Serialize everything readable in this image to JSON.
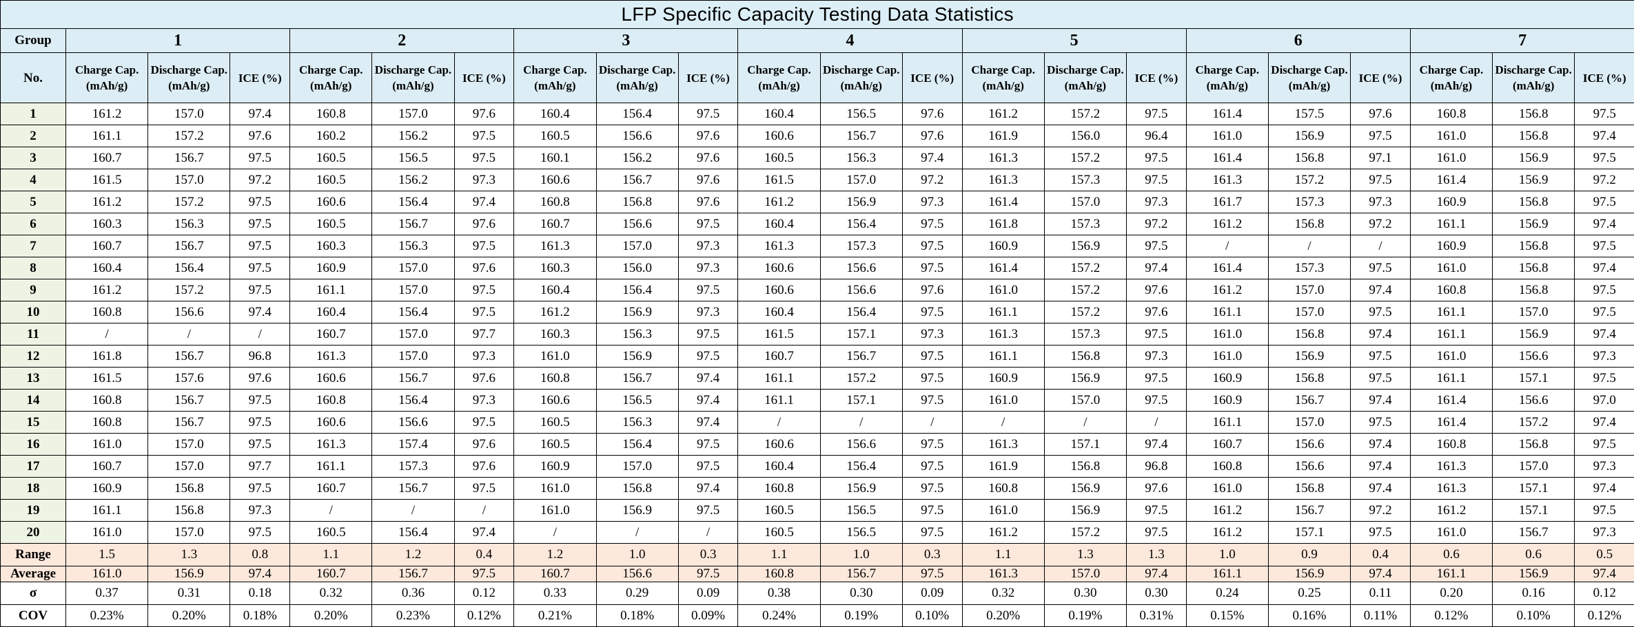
{
  "title": "LFP Specific Capacity Testing Data Statistics",
  "header": {
    "group_label": "Group",
    "no_label": "No.",
    "col_charge": "Charge Cap. (mAh/g)",
    "col_discharge": "Discharge Cap. (mAh/g)",
    "col_ice": "ICE (%)"
  },
  "groups": [
    "1",
    "2",
    "3",
    "4",
    "5",
    "6",
    "7"
  ],
  "rows": [
    {
      "no": "1",
      "v": [
        "161.2",
        "157.0",
        "97.4",
        "160.8",
        "157.0",
        "97.6",
        "160.4",
        "156.4",
        "97.5",
        "160.4",
        "156.5",
        "97.6",
        "161.2",
        "157.2",
        "97.5",
        "161.4",
        "157.5",
        "97.6",
        "160.8",
        "156.8",
        "97.5"
      ]
    },
    {
      "no": "2",
      "v": [
        "161.1",
        "157.2",
        "97.6",
        "160.2",
        "156.2",
        "97.5",
        "160.5",
        "156.6",
        "97.6",
        "160.6",
        "156.7",
        "97.6",
        "161.9",
        "156.0",
        "96.4",
        "161.0",
        "156.9",
        "97.5",
        "161.0",
        "156.8",
        "97.4"
      ]
    },
    {
      "no": "3",
      "v": [
        "160.7",
        "156.7",
        "97.5",
        "160.5",
        "156.5",
        "97.5",
        "160.1",
        "156.2",
        "97.6",
        "160.5",
        "156.3",
        "97.4",
        "161.3",
        "157.2",
        "97.5",
        "161.4",
        "156.8",
        "97.1",
        "161.0",
        "156.9",
        "97.5"
      ]
    },
    {
      "no": "4",
      "v": [
        "161.5",
        "157.0",
        "97.2",
        "160.5",
        "156.2",
        "97.3",
        "160.6",
        "156.7",
        "97.6",
        "161.5",
        "157.0",
        "97.2",
        "161.3",
        "157.3",
        "97.5",
        "161.3",
        "157.2",
        "97.5",
        "161.4",
        "156.9",
        "97.2"
      ]
    },
    {
      "no": "5",
      "v": [
        "161.2",
        "157.2",
        "97.5",
        "160.6",
        "156.4",
        "97.4",
        "160.8",
        "156.8",
        "97.6",
        "161.2",
        "156.9",
        "97.3",
        "161.4",
        "157.0",
        "97.3",
        "161.7",
        "157.3",
        "97.3",
        "160.9",
        "156.8",
        "97.5"
      ]
    },
    {
      "no": "6",
      "v": [
        "160.3",
        "156.3",
        "97.5",
        "160.5",
        "156.7",
        "97.6",
        "160.7",
        "156.6",
        "97.5",
        "160.4",
        "156.4",
        "97.5",
        "161.8",
        "157.3",
        "97.2",
        "161.2",
        "156.8",
        "97.2",
        "161.1",
        "156.9",
        "97.4"
      ]
    },
    {
      "no": "7",
      "v": [
        "160.7",
        "156.7",
        "97.5",
        "160.3",
        "156.3",
        "97.5",
        "161.3",
        "157.0",
        "97.3",
        "161.3",
        "157.3",
        "97.5",
        "160.9",
        "156.9",
        "97.5",
        "/",
        "/",
        "/",
        "160.9",
        "156.8",
        "97.5"
      ]
    },
    {
      "no": "8",
      "v": [
        "160.4",
        "156.4",
        "97.5",
        "160.9",
        "157.0",
        "97.6",
        "160.3",
        "156.0",
        "97.3",
        "160.6",
        "156.6",
        "97.5",
        "161.4",
        "157.2",
        "97.4",
        "161.4",
        "157.3",
        "97.5",
        "161.0",
        "156.8",
        "97.4"
      ]
    },
    {
      "no": "9",
      "v": [
        "161.2",
        "157.2",
        "97.5",
        "161.1",
        "157.0",
        "97.5",
        "160.4",
        "156.4",
        "97.5",
        "160.6",
        "156.6",
        "97.6",
        "161.0",
        "157.2",
        "97.6",
        "161.2",
        "157.0",
        "97.4",
        "160.8",
        "156.8",
        "97.5"
      ]
    },
    {
      "no": "10",
      "v": [
        "160.8",
        "156.6",
        "97.4",
        "160.4",
        "156.4",
        "97.5",
        "161.2",
        "156.9",
        "97.3",
        "160.4",
        "156.4",
        "97.5",
        "161.1",
        "157.2",
        "97.6",
        "161.1",
        "157.0",
        "97.5",
        "161.1",
        "157.0",
        "97.5"
      ]
    },
    {
      "no": "11",
      "v": [
        "/",
        "/",
        "/",
        "160.7",
        "157.0",
        "97.7",
        "160.3",
        "156.3",
        "97.5",
        "161.5",
        "157.1",
        "97.3",
        "161.3",
        "157.3",
        "97.5",
        "161.0",
        "156.8",
        "97.4",
        "161.1",
        "156.9",
        "97.4"
      ]
    },
    {
      "no": "12",
      "v": [
        "161.8",
        "156.7",
        "96.8",
        "161.3",
        "157.0",
        "97.3",
        "161.0",
        "156.9",
        "97.5",
        "160.7",
        "156.7",
        "97.5",
        "161.1",
        "156.8",
        "97.3",
        "161.0",
        "156.9",
        "97.5",
        "161.0",
        "156.6",
        "97.3"
      ]
    },
    {
      "no": "13",
      "v": [
        "161.5",
        "157.6",
        "97.6",
        "160.6",
        "156.7",
        "97.6",
        "160.8",
        "156.7",
        "97.4",
        "161.1",
        "157.2",
        "97.5",
        "160.9",
        "156.9",
        "97.5",
        "160.9",
        "156.8",
        "97.5",
        "161.1",
        "157.1",
        "97.5"
      ]
    },
    {
      "no": "14",
      "v": [
        "160.8",
        "156.7",
        "97.5",
        "160.8",
        "156.4",
        "97.3",
        "160.6",
        "156.5",
        "97.4",
        "161.1",
        "157.1",
        "97.5",
        "161.0",
        "157.0",
        "97.5",
        "160.9",
        "156.7",
        "97.4",
        "161.4",
        "156.6",
        "97.0"
      ]
    },
    {
      "no": "15",
      "v": [
        "160.8",
        "156.7",
        "97.5",
        "160.6",
        "156.6",
        "97.5",
        "160.5",
        "156.3",
        "97.4",
        "/",
        "/",
        "/",
        "/",
        "/",
        "/",
        "161.1",
        "157.0",
        "97.5",
        "161.4",
        "157.2",
        "97.4"
      ]
    },
    {
      "no": "16",
      "v": [
        "161.0",
        "157.0",
        "97.5",
        "161.3",
        "157.4",
        "97.6",
        "160.5",
        "156.4",
        "97.5",
        "160.6",
        "156.6",
        "97.5",
        "161.3",
        "157.1",
        "97.4",
        "160.7",
        "156.6",
        "97.4",
        "160.8",
        "156.8",
        "97.5"
      ]
    },
    {
      "no": "17",
      "v": [
        "160.7",
        "157.0",
        "97.7",
        "161.1",
        "157.3",
        "97.6",
        "160.9",
        "157.0",
        "97.5",
        "160.4",
        "156.4",
        "97.5",
        "161.9",
        "156.8",
        "96.8",
        "160.8",
        "156.6",
        "97.4",
        "161.3",
        "157.0",
        "97.3"
      ]
    },
    {
      "no": "18",
      "v": [
        "160.9",
        "156.8",
        "97.5",
        "160.7",
        "156.7",
        "97.5",
        "161.0",
        "156.8",
        "97.4",
        "160.8",
        "156.9",
        "97.5",
        "160.8",
        "156.9",
        "97.6",
        "161.0",
        "156.8",
        "97.4",
        "161.3",
        "157.1",
        "97.4"
      ]
    },
    {
      "no": "19",
      "v": [
        "161.1",
        "156.8",
        "97.3",
        "/",
        "/",
        "/",
        "161.0",
        "156.9",
        "97.5",
        "160.5",
        "156.5",
        "97.5",
        "161.0",
        "156.9",
        "97.5",
        "161.2",
        "156.7",
        "97.2",
        "161.2",
        "157.1",
        "97.5"
      ]
    },
    {
      "no": "20",
      "v": [
        "161.0",
        "157.0",
        "97.5",
        "160.5",
        "156.4",
        "97.4",
        "/",
        "/",
        "/",
        "160.5",
        "156.5",
        "97.5",
        "161.2",
        "157.2",
        "97.5",
        "161.2",
        "157.1",
        "97.5",
        "161.0",
        "156.7",
        "97.3"
      ]
    }
  ],
  "stats": [
    {
      "key": "range",
      "label": "Range",
      "peach": true,
      "v": [
        "1.5",
        "1.3",
        "0.8",
        "1.1",
        "1.2",
        "0.4",
        "1.2",
        "1.0",
        "0.3",
        "1.1",
        "1.0",
        "0.3",
        "1.1",
        "1.3",
        "1.3",
        "1.0",
        "0.9",
        "0.4",
        "0.6",
        "0.6",
        "0.5"
      ]
    },
    {
      "key": "average",
      "label": "Average",
      "peach": true,
      "v": [
        "161.0",
        "156.9",
        "97.4",
        "160.7",
        "156.7",
        "97.5",
        "160.7",
        "156.6",
        "97.5",
        "160.8",
        "156.7",
        "97.5",
        "161.3",
        "157.0",
        "97.4",
        "161.1",
        "156.9",
        "97.4",
        "161.1",
        "156.9",
        "97.4"
      ]
    },
    {
      "key": "sigma",
      "label": "σ",
      "peach": false,
      "v": [
        "0.37",
        "0.31",
        "0.18",
        "0.32",
        "0.36",
        "0.12",
        "0.33",
        "0.29",
        "0.09",
        "0.38",
        "0.30",
        "0.09",
        "0.32",
        "0.30",
        "0.30",
        "0.24",
        "0.25",
        "0.11",
        "0.20",
        "0.16",
        "0.12"
      ]
    },
    {
      "key": "cov",
      "label": "COV",
      "peach": false,
      "v": [
        "0.23%",
        "0.20%",
        "0.18%",
        "0.20%",
        "0.23%",
        "0.12%",
        "0.21%",
        "0.18%",
        "0.09%",
        "0.24%",
        "0.19%",
        "0.10%",
        "0.20%",
        "0.19%",
        "0.31%",
        "0.15%",
        "0.16%",
        "0.11%",
        "0.12%",
        "0.10%",
        "0.12%"
      ]
    }
  ]
}
